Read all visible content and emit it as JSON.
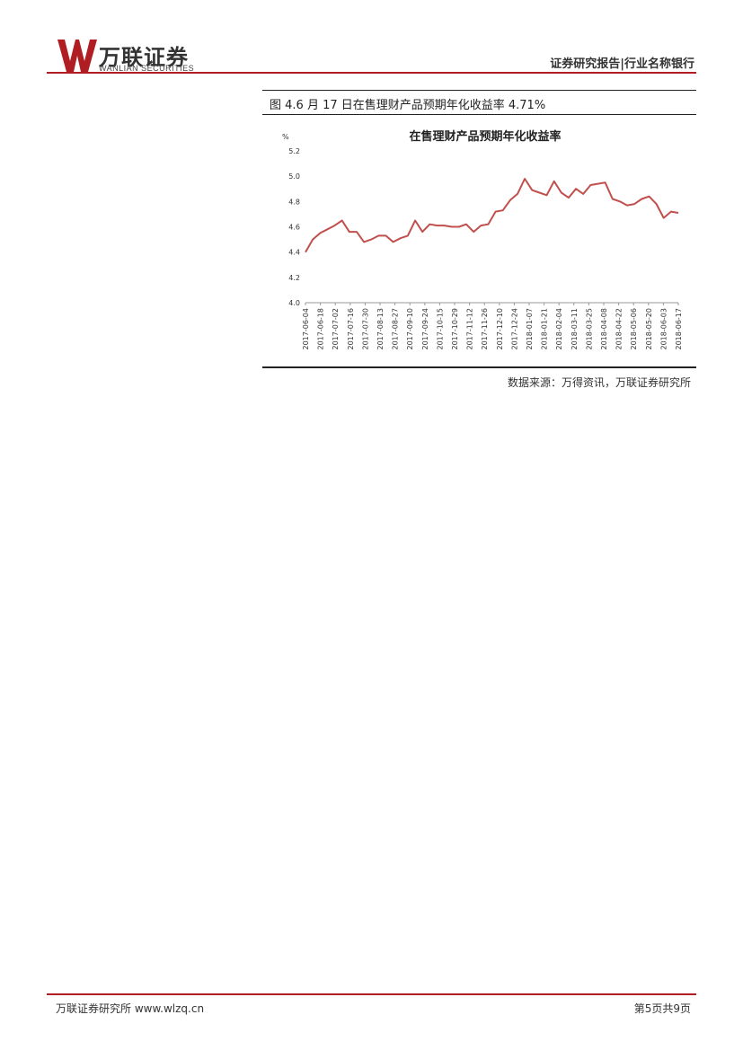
{
  "header": {
    "logo_cn": "万联证券",
    "logo_en": "WANLIAN SECURITIES",
    "report_type": "证券研究报告|行业名称银行",
    "brand_color": "#b01e23"
  },
  "figure": {
    "caption": "图 4.6 月 17 日在售理财产品预期年化收益率 4.71%",
    "source": "数据来源：万得资讯，万联证券研究所"
  },
  "chart_data": {
    "type": "line",
    "title": "在售理财产品预期年化收益率",
    "unit_label": "%",
    "ylim": [
      4.0,
      5.2
    ],
    "yticks": [
      "5.2",
      "5.0",
      "4.8",
      "4.6",
      "4.4",
      "4.2",
      "4.0"
    ],
    "line_color": "#c0504d",
    "grid": false,
    "legend": "none",
    "xtick_labels": [
      "2017-06-04",
      "2017-06-18",
      "2017-07-02",
      "2017-07-16",
      "2017-07-30",
      "2017-08-13",
      "2017-08-27",
      "2017-09-10",
      "2017-09-24",
      "2017-10-15",
      "2017-10-29",
      "2017-11-12",
      "2017-11-26",
      "2017-12-10",
      "2017-12-24",
      "2018-01-07",
      "2018-01-21",
      "2018-02-04",
      "2018-03-11",
      "2018-03-25",
      "2018-04-08",
      "2018-04-22",
      "2018-05-06",
      "2018-05-20",
      "2018-06-03",
      "2018-06-17"
    ],
    "values": [
      4.4,
      4.5,
      4.55,
      4.58,
      4.61,
      4.65,
      4.56,
      4.56,
      4.48,
      4.5,
      4.53,
      4.53,
      4.48,
      4.51,
      4.53,
      4.65,
      4.56,
      4.62,
      4.61,
      4.61,
      4.6,
      4.6,
      4.62,
      4.56,
      4.61,
      4.62,
      4.72,
      4.73,
      4.81,
      4.86,
      4.98,
      4.89,
      4.87,
      4.85,
      4.96,
      4.87,
      4.83,
      4.9,
      4.86,
      4.93,
      4.94,
      4.95,
      4.82,
      4.8,
      4.77,
      4.78,
      4.82,
      4.84,
      4.78,
      4.67,
      4.72,
      4.71
    ]
  },
  "footer": {
    "left": "万联证券研究所 www.wlzq.cn",
    "right": "第5页共9页"
  }
}
